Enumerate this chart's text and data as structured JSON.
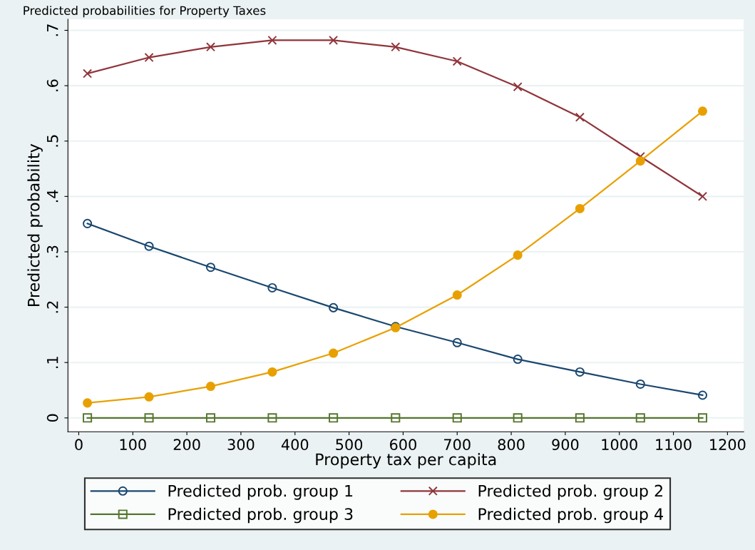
{
  "chart_data": {
    "type": "line",
    "title": "Predicted probabilities for Property Taxes",
    "xlabel": "Property tax per capita",
    "ylabel": "Predicted probability",
    "x": [
      16,
      130,
      244,
      358,
      471,
      586,
      700,
      812,
      927,
      1039,
      1154
    ],
    "series": [
      {
        "name": "Predicted prob. group 1",
        "color": "#1a476f",
        "marker": "circle_open",
        "values": [
          0.351,
          0.31,
          0.272,
          0.235,
          0.199,
          0.165,
          0.136,
          0.106,
          0.083,
          0.061,
          0.041
        ]
      },
      {
        "name": "Predicted prob. group 2",
        "color": "#90353b",
        "marker": "cross",
        "values": [
          0.622,
          0.651,
          0.67,
          0.682,
          0.682,
          0.67,
          0.644,
          0.598,
          0.543,
          0.472,
          0.4
        ]
      },
      {
        "name": "Predicted prob. group 3",
        "color": "#55752f",
        "marker": "square_open",
        "values": [
          0,
          0,
          0,
          0,
          0,
          0,
          0,
          0,
          0,
          0,
          0
        ]
      },
      {
        "name": "Predicted prob. group 4",
        "color": "#e8a000",
        "marker": "circle",
        "values": [
          0.027,
          0.038,
          0.057,
          0.083,
          0.117,
          0.163,
          0.222,
          0.294,
          0.378,
          0.464,
          0.554
        ]
      }
    ],
    "xlim": [
      -20,
      1230
    ],
    "xticks": [
      0,
      100,
      200,
      300,
      400,
      500,
      600,
      700,
      800,
      900,
      1000,
      1100,
      1200
    ],
    "ylim": [
      -0.025,
      0.72
    ],
    "yticks": [
      {
        "value": 0,
        "label": "0"
      },
      {
        "value": 0.1,
        "label": ".1"
      },
      {
        "value": 0.2,
        "label": ".2"
      },
      {
        "value": 0.3,
        "label": ".3"
      },
      {
        "value": 0.4,
        "label": ".4"
      },
      {
        "value": 0.5,
        "label": ".5"
      },
      {
        "value": 0.6,
        "label": ".6"
      },
      {
        "value": 0.7,
        "label": ".7"
      }
    ],
    "grid": "y",
    "legend": "bottom",
    "line_style": "solid"
  }
}
